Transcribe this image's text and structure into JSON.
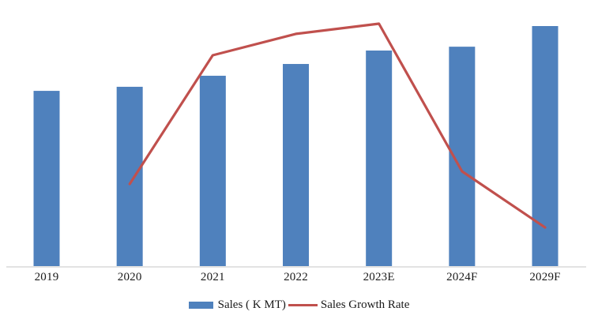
{
  "chart_data": {
    "type": "bar+line",
    "title": "",
    "xlabel": "",
    "ylabel": "",
    "categories": [
      "2019",
      "2020",
      "2021",
      "2022",
      "2023E",
      "2024F",
      "2029F"
    ],
    "series": [
      {
        "name": "Sales ( K MT)",
        "type": "bar",
        "color": "#4F81BD",
        "values_pct_of_max": [
          73.0,
          74.7,
          79.3,
          84.2,
          89.8,
          91.4,
          100.0
        ]
      },
      {
        "name": "Sales Growth Rate",
        "type": "line",
        "color": "#C0504D",
        "values_pct_of_max": [
          null,
          34.1,
          87.0,
          95.8,
          100.0,
          39.3,
          16.2
        ]
      }
    ],
    "y_axis_tick_labels_visible": false,
    "grid": false,
    "axis_line_color": "#D9D9D9",
    "legend_position": "bottom"
  },
  "legend": {
    "items": [
      {
        "label": "Sales ( K MT)",
        "swatch": "bar",
        "color": "#4F81BD"
      },
      {
        "label": "Sales Growth Rate",
        "swatch": "line",
        "color": "#C0504D"
      }
    ]
  }
}
